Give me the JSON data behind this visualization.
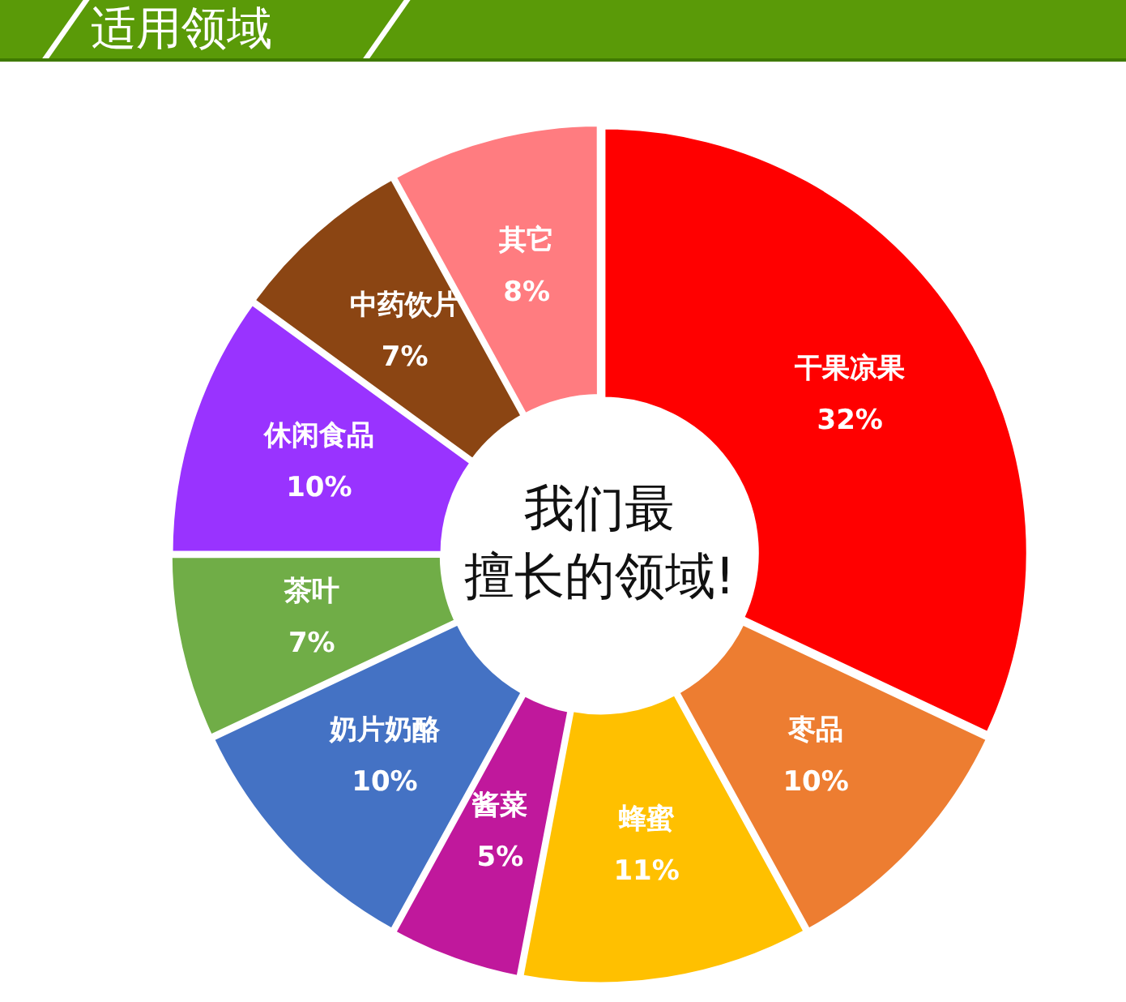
{
  "chart_data": {
    "type": "donut",
    "title": "适用领域",
    "categories": [
      "干果凉果",
      "枣品",
      "蜂蜜",
      "酱菜",
      "奶片奶酪",
      "茶叶",
      "休闲食品",
      "中药饮片",
      "其它"
    ],
    "values": [
      32,
      10,
      11,
      5,
      10,
      7,
      10,
      7,
      8
    ],
    "value_labels": [
      "32%",
      "10%",
      "11%",
      "5%",
      "10%",
      "7%",
      "10%",
      "7%",
      "8%"
    ],
    "colors": [
      "#ff0000",
      "#ed7d31",
      "#ffc000",
      "#c0189c",
      "#4472c4",
      "#70ad47",
      "#9933ff",
      "#8b4513",
      "#ff7c80"
    ],
    "annotations": [
      "我们最",
      "擅长的领域!"
    ],
    "legend": false
  }
}
